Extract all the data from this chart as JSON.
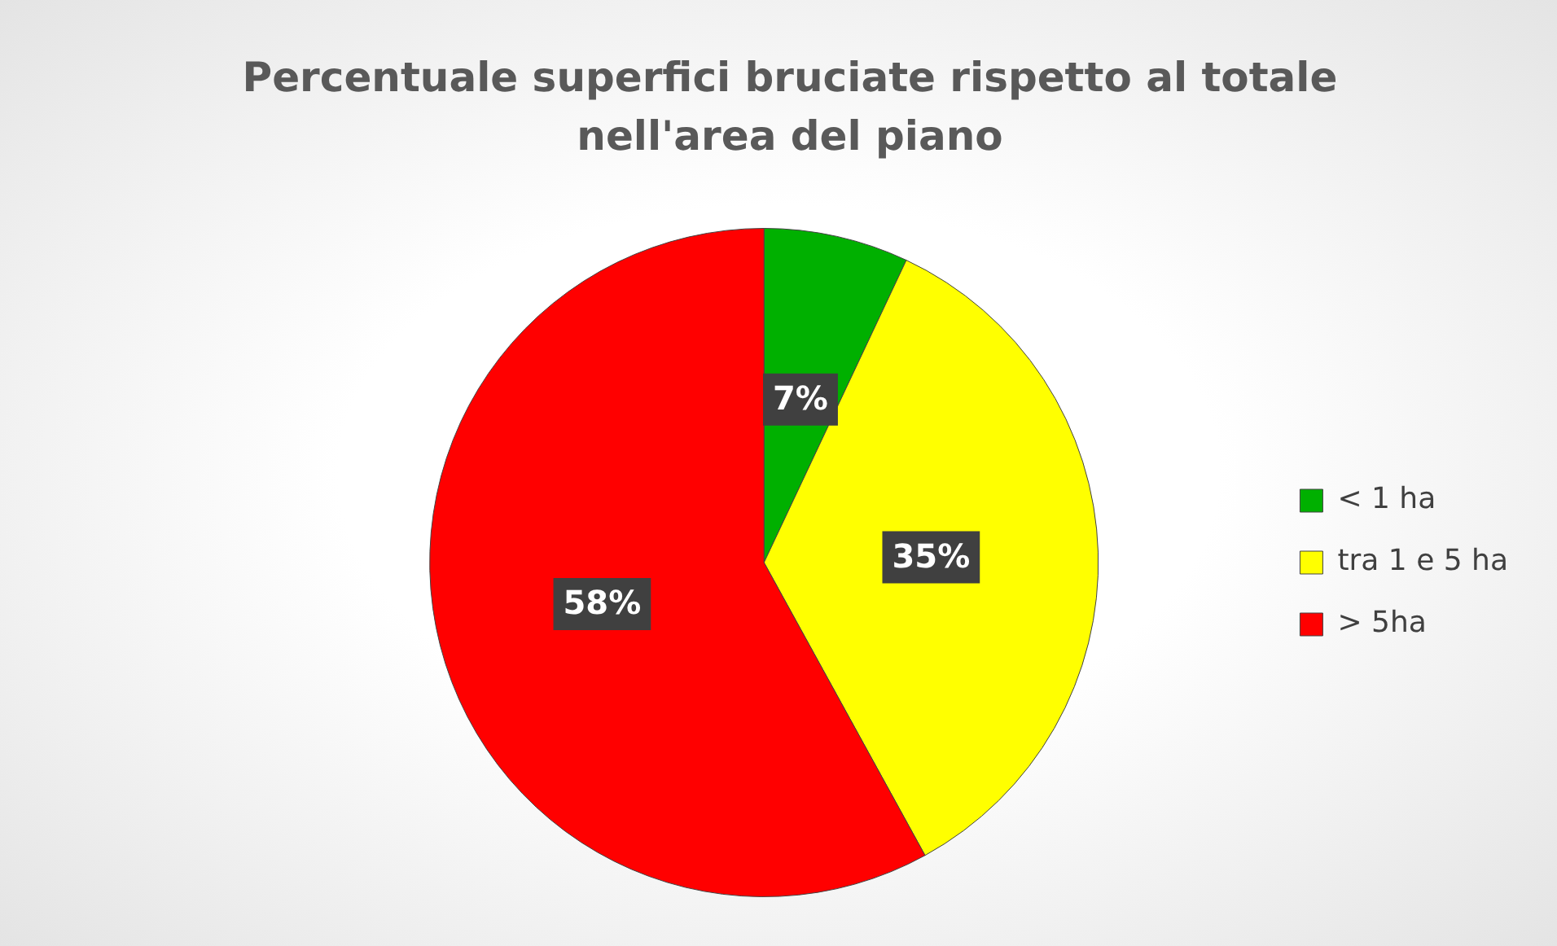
{
  "chart_data": {
    "type": "pie",
    "title": "Percentuale superfici bruciate rispetto al totale nell'area del piano",
    "categories": [
      "< 1 ha",
      "tra 1 e 5 ha",
      "> 5ha"
    ],
    "values": [
      7,
      35,
      58
    ],
    "colors": [
      "#00b000",
      "#ffff00",
      "#ff0000"
    ],
    "value_labels": [
      "7%",
      "35%",
      "58%"
    ],
    "legend": "right"
  }
}
